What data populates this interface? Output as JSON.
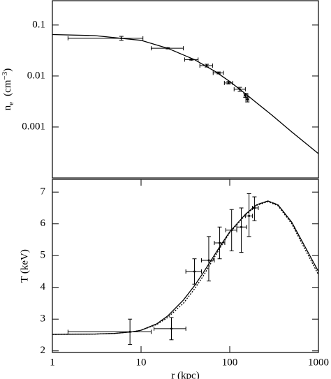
{
  "chart_data": [
    {
      "type": "scatter",
      "xlog": true,
      "ylog": true,
      "xlim": [
        1,
        1000
      ],
      "ylim": [
        0.0001,
        0.3
      ],
      "yticks": [
        0.1,
        0.01,
        0.001
      ],
      "ylabel": {
        "base": "n",
        "sub": "e",
        "unit": "(cm",
        "sup": "−3",
        "close": ")"
      },
      "series": [
        {
          "style": "errorbar",
          "color": "#000000",
          "x": [
            6,
            20,
            37,
            55,
            75,
            97,
            130,
            150,
            158
          ],
          "values": [
            0.055,
            0.035,
            0.021,
            0.016,
            0.0115,
            0.0073,
            0.0055,
            0.0042,
            0.0035
          ],
          "x_low": [
            1.5,
            13,
            31,
            46,
            65,
            87,
            112,
            145,
            152
          ],
          "x_high": [
            10.5,
            30,
            44,
            64,
            85,
            108,
            150,
            160,
            164
          ],
          "y_low": [
            0.05,
            0.034,
            0.0205,
            0.015,
            0.011,
            0.007,
            0.005,
            0.0038,
            0.0031
          ],
          "y_high": [
            0.06,
            0.036,
            0.0215,
            0.017,
            0.012,
            0.0078,
            0.006,
            0.0046,
            0.0039
          ]
        },
        {
          "style": "line",
          "color": "#000000",
          "x": [
            1,
            3,
            10,
            20,
            40,
            70,
            100,
            150,
            200,
            300,
            500,
            1000
          ],
          "values": [
            0.065,
            0.062,
            0.05,
            0.035,
            0.021,
            0.012,
            0.0078,
            0.0045,
            0.003,
            0.0017,
            0.0008,
            0.0003
          ]
        }
      ]
    },
    {
      "type": "scatter",
      "xlog": true,
      "ylog": false,
      "xlim": [
        1,
        1000
      ],
      "ylim": [
        1.95,
        7.4
      ],
      "xticks": [
        1,
        10,
        100,
        1000
      ],
      "yticks": [
        2,
        3,
        4,
        5,
        6,
        7
      ],
      "xlabel": "r (kpc)",
      "ylabel_text": "T (keV)",
      "series": [
        {
          "style": "errorbar",
          "color": "#000000",
          "x": [
            7.5,
            22,
            40,
            58,
            77,
            105,
            135,
            165,
            190
          ],
          "values": [
            2.6,
            2.7,
            4.5,
            4.85,
            5.4,
            5.8,
            5.9,
            6.25,
            6.5
          ],
          "x_low": [
            1.5,
            14,
            32,
            48,
            67,
            90,
            120,
            150,
            180
          ],
          "x_high": [
            13,
            32,
            48,
            67,
            88,
            120,
            155,
            180,
            210
          ],
          "y_low": [
            2.2,
            2.35,
            4.1,
            4.2,
            4.9,
            5.15,
            5.1,
            5.6,
            6.1
          ],
          "y_high": [
            3.0,
            3.05,
            4.9,
            5.6,
            5.9,
            6.45,
            6.5,
            6.95,
            6.85
          ]
        },
        {
          "style": "line",
          "color": "#000000",
          "x": [
            1,
            3,
            5,
            8,
            10,
            15,
            20,
            30,
            40,
            50,
            60,
            80,
            100,
            150,
            200,
            270,
            350,
            500,
            700,
            1000
          ],
          "values": [
            2.52,
            2.53,
            2.55,
            2.6,
            2.65,
            2.85,
            3.1,
            3.6,
            4.05,
            4.45,
            4.8,
            5.35,
            5.75,
            6.3,
            6.6,
            6.72,
            6.6,
            6.05,
            5.3,
            4.5
          ]
        },
        {
          "style": "line",
          "dash": true,
          "color": "#000000",
          "x": [
            1,
            3,
            5,
            8,
            10,
            15,
            20,
            30,
            40,
            50,
            60,
            80,
            100,
            150,
            200,
            270,
            350,
            500,
            700,
            1000
          ],
          "values": [
            2.52,
            2.53,
            2.55,
            2.6,
            2.65,
            2.83,
            3.05,
            3.5,
            3.95,
            4.35,
            4.72,
            5.3,
            5.72,
            6.28,
            6.58,
            6.7,
            6.57,
            6.0,
            5.22,
            4.4
          ]
        }
      ]
    }
  ]
}
